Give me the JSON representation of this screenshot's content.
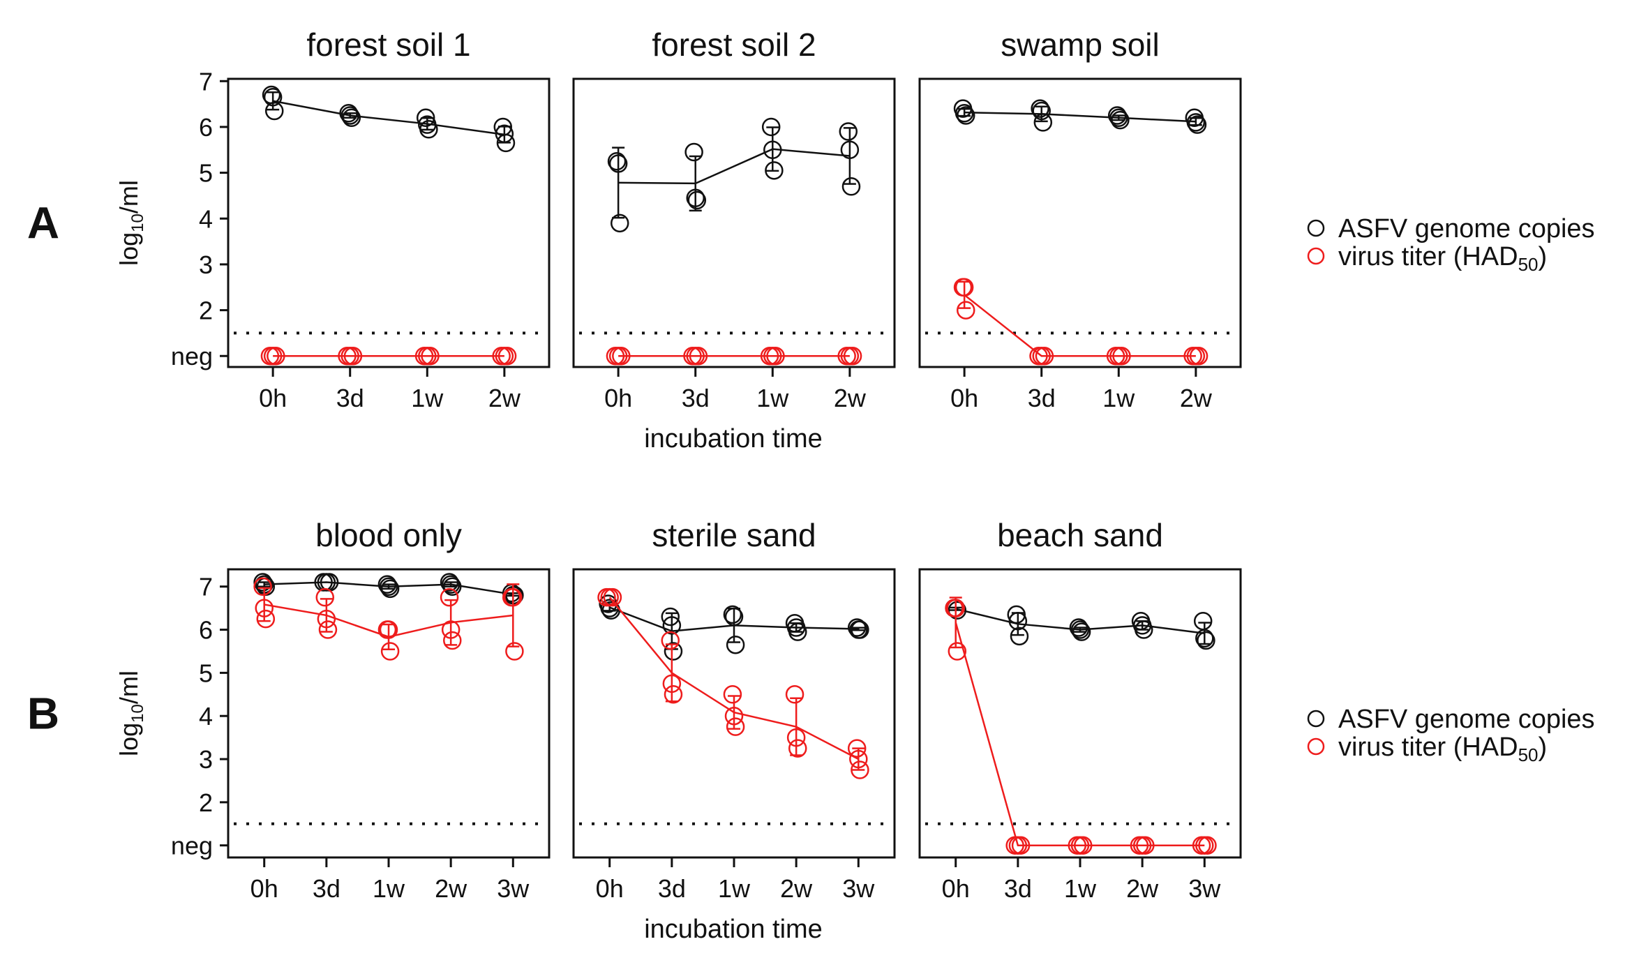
{
  "colors": {
    "genome": "#111111",
    "titer": "#ee1c1c"
  },
  "legend": {
    "genome_label": "ASFV genome copies",
    "titer_label": "virus titer (HAD",
    "titer_sub": "50",
    "titer_close": ")"
  },
  "chart_data": [
    {
      "row_label": "A",
      "type": "line",
      "ylabel": "log10/ml",
      "ylabel_base": "log",
      "ylabel_sub": "10",
      "ylabel_rest": "/ml",
      "xlabel": "incubation time",
      "yticks": [
        "neg",
        "2",
        "3",
        "4",
        "5",
        "6",
        "7"
      ],
      "ytick_values": [
        1,
        2,
        3,
        4,
        5,
        6,
        7
      ],
      "ylim": [
        0.76,
        7.05
      ],
      "detection_limit": 1.5,
      "categories": [
        "0h",
        "3d",
        "1w",
        "2w"
      ],
      "panels": [
        {
          "title": "forest soil 1",
          "series": [
            {
              "name": "ASFV genome copies",
              "points": [
                [
                  6.7,
                  6.65,
                  6.35
                ],
                [
                  6.3,
                  6.25,
                  6.2
                ],
                [
                  6.2,
                  6.05,
                  5.95
                ],
                [
                  6.0,
                  5.85,
                  5.65
                ]
              ]
            },
            {
              "name": "virus titer (HAD50)",
              "points": [
                [
                  1,
                  1,
                  1
                ],
                [
                  1,
                  1,
                  1
                ],
                [
                  1,
                  1,
                  1
                ],
                [
                  1,
                  1,
                  1
                ]
              ]
            }
          ]
        },
        {
          "title": "forest soil 2",
          "series": [
            {
              "name": "ASFV genome copies",
              "points": [
                [
                  5.25,
                  5.2,
                  3.9
                ],
                [
                  5.45,
                  4.45,
                  4.4
                ],
                [
                  6.0,
                  5.5,
                  5.05
                ],
                [
                  5.9,
                  5.5,
                  4.7
                ]
              ]
            },
            {
              "name": "virus titer (HAD50)",
              "points": [
                [
                  1,
                  1,
                  1
                ],
                [
                  1,
                  1,
                  1
                ],
                [
                  1,
                  1,
                  1
                ],
                [
                  1,
                  1,
                  1
                ]
              ]
            }
          ]
        },
        {
          "title": "swamp soil",
          "series": [
            {
              "name": "ASFV genome copies",
              "points": [
                [
                  6.4,
                  6.3,
                  6.25
                ],
                [
                  6.4,
                  6.35,
                  6.1
                ],
                [
                  6.25,
                  6.2,
                  6.15
                ],
                [
                  6.2,
                  6.1,
                  6.05
                ]
              ]
            },
            {
              "name": "virus titer (HAD50)",
              "points": [
                [
                  2.5,
                  2.5,
                  2.0
                ],
                [
                  1,
                  1,
                  1
                ],
                [
                  1,
                  1,
                  1
                ],
                [
                  1,
                  1,
                  1
                ]
              ]
            }
          ]
        }
      ]
    },
    {
      "row_label": "B",
      "type": "line",
      "ylabel": "log10/ml",
      "ylabel_base": "log",
      "ylabel_sub": "10",
      "ylabel_rest": "/ml",
      "xlabel": "incubation time",
      "yticks": [
        "neg",
        "2",
        "3",
        "4",
        "5",
        "6",
        "7"
      ],
      "ytick_values": [
        1,
        2,
        3,
        4,
        5,
        6,
        7
      ],
      "ylim": [
        0.72,
        7.4
      ],
      "detection_limit": 1.5,
      "categories": [
        "0h",
        "3d",
        "1w",
        "2w",
        "3w"
      ],
      "panels": [
        {
          "title": "blood only",
          "series": [
            {
              "name": "ASFV genome copies",
              "points": [
                [
                  7.1,
                  7.05,
                  7.0
                ],
                [
                  7.1,
                  7.1,
                  7.1
                ],
                [
                  7.05,
                  7.0,
                  6.95
                ],
                [
                  7.1,
                  7.05,
                  7.0
                ],
                [
                  6.85,
                  6.8,
                  6.8
                ]
              ]
            },
            {
              "name": "virus titer (HAD50)",
              "points": [
                [
                  7.0,
                  6.5,
                  6.25
                ],
                [
                  6.75,
                  6.25,
                  6.0
                ],
                [
                  6.0,
                  6.0,
                  5.5
                ],
                [
                  6.75,
                  6.0,
                  5.75
                ],
                [
                  6.75,
                  6.75,
                  5.5
                ]
              ]
            }
          ]
        },
        {
          "title": "sterile sand",
          "series": [
            {
              "name": "ASFV genome copies",
              "points": [
                [
                  6.6,
                  6.5,
                  6.45
                ],
                [
                  6.3,
                  6.1,
                  5.5
                ],
                [
                  6.35,
                  6.3,
                  5.65
                ],
                [
                  6.15,
                  6.05,
                  5.95
                ],
                [
                  6.05,
                  6.0,
                  6.0
                ]
              ]
            },
            {
              "name": "virus titer (HAD50)",
              "points": [
                [
                  6.75,
                  6.75,
                  6.75
                ],
                [
                  5.75,
                  4.75,
                  4.5
                ],
                [
                  4.5,
                  4.0,
                  3.75
                ],
                [
                  4.5,
                  3.5,
                  3.25
                ],
                [
                  3.25,
                  3.0,
                  2.75
                ]
              ]
            }
          ]
        },
        {
          "title": "beach sand",
          "series": [
            {
              "name": "ASFV genome copies",
              "points": [
                [
                  6.5,
                  6.5,
                  6.45
                ],
                [
                  6.35,
                  6.2,
                  5.85
                ],
                [
                  6.05,
                  6.0,
                  5.95
                ],
                [
                  6.2,
                  6.1,
                  6.0
                ],
                [
                  6.2,
                  5.8,
                  5.75
                ]
              ]
            },
            {
              "name": "virus titer (HAD50)",
              "points": [
                [
                  6.5,
                  6.5,
                  5.5
                ],
                [
                  1,
                  1,
                  1
                ],
                [
                  1,
                  1,
                  1
                ],
                [
                  1,
                  1,
                  1
                ],
                [
                  1,
                  1,
                  1
                ]
              ]
            }
          ]
        }
      ]
    }
  ]
}
